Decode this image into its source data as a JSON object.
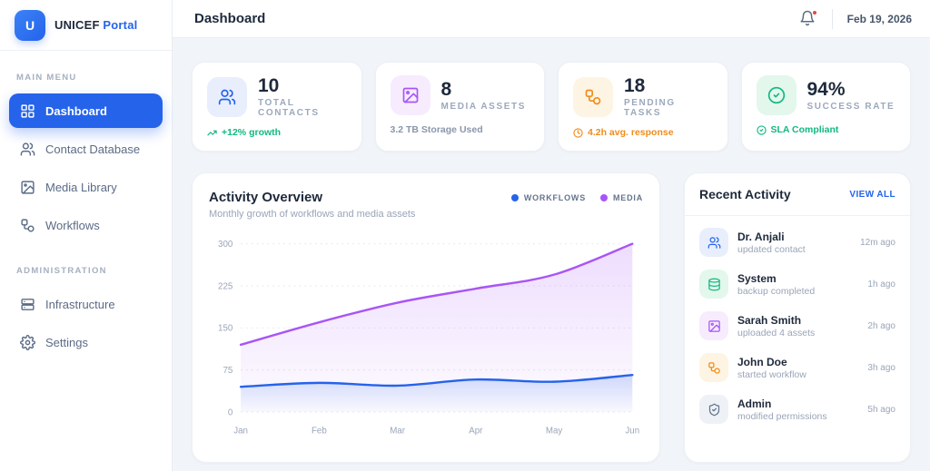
{
  "brand": {
    "logo_letter": "U",
    "name_primary": "UNICEF",
    "name_secondary": "Portal"
  },
  "topbar": {
    "title": "Dashboard",
    "date": "Feb 19, 2026",
    "bell_icon": "bell-icon",
    "has_notification_dot": true
  },
  "sidebar": {
    "sections": [
      {
        "label": "MAIN MENU",
        "items": [
          {
            "label": "Dashboard",
            "icon": "dashboard-grid-icon",
            "active": true
          },
          {
            "label": "Contact Database",
            "icon": "contacts-icon",
            "active": false
          },
          {
            "label": "Media Library",
            "icon": "media-image-icon",
            "active": false
          },
          {
            "label": "Workflows",
            "icon": "workflow-icon",
            "active": false
          }
        ]
      },
      {
        "label": "ADMINISTRATION",
        "items": [
          {
            "label": "Infrastructure",
            "icon": "server-icon",
            "active": false
          },
          {
            "label": "Settings",
            "icon": "gear-icon",
            "active": false
          }
        ]
      }
    ]
  },
  "stats": [
    {
      "value": "10",
      "label": "TOTAL CONTACTS",
      "footnote": "+12% growth",
      "icon": "contacts-icon",
      "footnote_icon": "trending-up-icon",
      "accent": "#2563eb",
      "footnote_color": "#10b981"
    },
    {
      "value": "8",
      "label": "MEDIA ASSETS",
      "footnote": "3.2 TB Storage Used",
      "icon": "media-image-icon",
      "footnote_icon": "",
      "accent": "#a855f7",
      "footnote_color": "#8a96ab"
    },
    {
      "value": "18",
      "label": "PENDING TASKS",
      "footnote": "4.2h avg. response",
      "icon": "workflow-icon",
      "footnote_icon": "clock-icon",
      "accent": "#f08c1a",
      "footnote_color": "#f08c1a"
    },
    {
      "value": "94%",
      "label": "SUCCESS RATE",
      "footnote": "SLA Compliant",
      "icon": "check-circle-icon",
      "footnote_icon": "shield-check-icon",
      "accent": "#10b981",
      "footnote_color": "#10b981"
    }
  ],
  "chart": {
    "title": "Activity Overview",
    "subtitle": "Monthly growth of workflows and media assets"
  },
  "chart_data": {
    "type": "area",
    "x": [
      "Jan",
      "Feb",
      "Mar",
      "Apr",
      "May",
      "Jun"
    ],
    "series": [
      {
        "name": "WORKFLOWS",
        "color": "#2563eb",
        "values": [
          45,
          52,
          47,
          58,
          54,
          66
        ]
      },
      {
        "name": "MEDIA",
        "color": "#a855f7",
        "values": [
          120,
          160,
          195,
          220,
          245,
          300
        ]
      }
    ],
    "yticks": [
      0,
      75,
      150,
      225,
      300
    ],
    "ylim": [
      0,
      300
    ],
    "grid": "dashed-horizontal",
    "legend_position": "top-right",
    "title": "Activity Overview",
    "xlabel": "",
    "ylabel": ""
  },
  "activity": {
    "title": "Recent Activity",
    "view_all_label": "VIEW ALL",
    "items": [
      {
        "name": "Dr. Anjali",
        "action": "updated contact",
        "time": "12m ago",
        "icon": "contacts-icon",
        "tint": "blue"
      },
      {
        "name": "System",
        "action": "backup completed",
        "time": "1h ago",
        "icon": "database-icon",
        "tint": "green"
      },
      {
        "name": "Sarah Smith",
        "action": "uploaded 4 assets",
        "time": "2h ago",
        "icon": "media-image-icon",
        "tint": "purple"
      },
      {
        "name": "John Doe",
        "action": "started workflow",
        "time": "3h ago",
        "icon": "workflow-icon",
        "tint": "orange"
      },
      {
        "name": "Admin",
        "action": "modified permissions",
        "time": "5h ago",
        "icon": "shield-check-icon",
        "tint": "gray"
      }
    ]
  },
  "colors": {
    "accent_blue": "#2563eb",
    "purple": "#a855f7",
    "green": "#10b981",
    "orange": "#f08c1a",
    "background": "#f1f5f9",
    "notification_dot": "#ef4444"
  }
}
